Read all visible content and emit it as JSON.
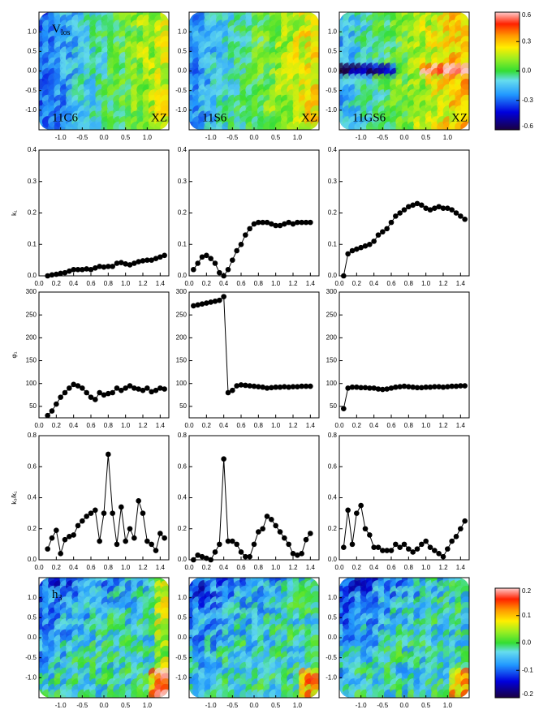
{
  "chart_data": [
    {
      "type": "map",
      "label": "V",
      "label_sub": "los",
      "name": "11C6",
      "view": "XZ",
      "xlim": [
        -1.5,
        1.5
      ],
      "ylim": [
        -1.5,
        1.5
      ],
      "xticks": [
        {
          "value": -1,
          "label": "-1.0"
        },
        -0.5,
        {
          "value": 0,
          "label": "0.0"
        },
        0.5,
        {
          "value": 1,
          "label": "1.0"
        }
      ],
      "yticks": [
        {
          "value": 1,
          "label": "1.0"
        },
        0.5,
        {
          "value": 0,
          "label": "0.0"
        },
        -0.5,
        {
          "value": -1,
          "label": "-1.0"
        }
      ]
    },
    {
      "type": "map",
      "name": "11S6",
      "view": "XZ",
      "xlim": [
        -1.5,
        1.5
      ],
      "ylim": [
        -1.5,
        1.5
      ],
      "xticks": [
        {
          "value": -1,
          "label": "-1.0"
        },
        -0.5,
        {
          "value": 0,
          "label": "0.0"
        },
        0.5,
        {
          "value": 1,
          "label": "1.0"
        }
      ],
      "yticks": [
        {
          "value": 1,
          "label": "1.0"
        },
        0.5,
        {
          "value": 0,
          "label": "0.0"
        },
        -0.5,
        {
          "value": -1,
          "label": "-1.0"
        }
      ]
    },
    {
      "type": "map",
      "name": "11GS6",
      "view": "XZ",
      "xlim": [
        -1.5,
        1.5
      ],
      "ylim": [
        -1.5,
        1.5
      ],
      "xticks": [
        {
          "value": -1,
          "label": "-1.0"
        },
        -0.5,
        {
          "value": 0,
          "label": "0.0"
        },
        0.5,
        {
          "value": 1,
          "label": "1.0"
        }
      ],
      "yticks": [
        {
          "value": 1,
          "label": "1.0"
        },
        0.5,
        {
          "value": 0,
          "label": "0.0"
        },
        -0.5,
        {
          "value": -1,
          "label": "-1.0"
        }
      ]
    },
    {
      "type": "colorbar",
      "ylim": [
        -0.6,
        0.6
      ],
      "yticks": [
        0.6,
        0.3,
        {
          "value": 0,
          "label": "0.0"
        },
        -0.3,
        -0.6
      ]
    },
    {
      "type": "line",
      "ylabel": "k₁",
      "xlim": [
        0,
        1.5
      ],
      "ylim": [
        0,
        0.4
      ],
      "xticks": [
        {
          "value": 0,
          "label": "0.0"
        },
        0.2,
        0.4,
        0.6,
        0.8,
        {
          "value": 1,
          "label": "1.0"
        },
        1.2,
        1.4
      ],
      "yticks": [
        {
          "value": 0,
          "label": "0.0"
        },
        0.1,
        0.2,
        0.3,
        0.4
      ],
      "x": [
        0.1,
        0.15,
        0.2,
        0.25,
        0.3,
        0.35,
        0.4,
        0.45,
        0.5,
        0.55,
        0.6,
        0.65,
        0.7,
        0.75,
        0.8,
        0.85,
        0.9,
        0.95,
        1,
        1.05,
        1.1,
        1.15,
        1.2,
        1.25,
        1.3,
        1.35,
        1.4,
        1.45
      ],
      "values": [
        0,
        0.003,
        0.005,
        0.008,
        0.01,
        0.015,
        0.02,
        0.02,
        0.02,
        0.022,
        0.02,
        0.025,
        0.03,
        0.028,
        0.03,
        0.03,
        0.04,
        0.042,
        0.038,
        0.035,
        0.04,
        0.045,
        0.048,
        0.05,
        0.05,
        0.055,
        0.06,
        0.065
      ]
    },
    {
      "type": "line",
      "xlim": [
        0,
        1.5
      ],
      "ylim": [
        0,
        0.4
      ],
      "xticks": [
        {
          "value": 0,
          "label": "0.0"
        },
        0.2,
        0.4,
        0.6,
        0.8,
        {
          "value": 1,
          "label": "1.0"
        },
        1.2,
        1.4
      ],
      "yticks": [
        {
          "value": 0,
          "label": "0.0"
        },
        0.1,
        0.2,
        0.3,
        0.4
      ],
      "x": [
        0.05,
        0.1,
        0.15,
        0.2,
        0.25,
        0.3,
        0.35,
        0.4,
        0.45,
        0.5,
        0.55,
        0.6,
        0.65,
        0.7,
        0.75,
        0.8,
        0.85,
        0.9,
        0.95,
        1,
        1.05,
        1.1,
        1.15,
        1.2,
        1.25,
        1.3,
        1.35,
        1.4
      ],
      "values": [
        0.02,
        0.04,
        0.06,
        0.065,
        0.055,
        0.04,
        0.01,
        0,
        0.02,
        0.05,
        0.08,
        0.1,
        0.13,
        0.15,
        0.165,
        0.17,
        0.17,
        0.17,
        0.165,
        0.16,
        0.16,
        0.165,
        0.17,
        0.165,
        0.17,
        0.17,
        0.17,
        0.17
      ]
    },
    {
      "type": "line",
      "xlim": [
        0,
        1.5
      ],
      "ylim": [
        0,
        0.4
      ],
      "xticks": [
        {
          "value": 0,
          "label": "0.0"
        },
        0.2,
        0.4,
        0.6,
        0.8,
        {
          "value": 1,
          "label": "1.0"
        },
        1.2,
        1.4
      ],
      "yticks": [
        {
          "value": 0,
          "label": "0.0"
        },
        0.1,
        0.2,
        0.3,
        0.4
      ],
      "x": [
        0.05,
        0.1,
        0.15,
        0.2,
        0.25,
        0.3,
        0.35,
        0.4,
        0.45,
        0.5,
        0.55,
        0.6,
        0.65,
        0.7,
        0.75,
        0.8,
        0.85,
        0.9,
        0.95,
        1,
        1.05,
        1.1,
        1.15,
        1.2,
        1.25,
        1.3,
        1.35,
        1.4,
        1.45
      ],
      "values": [
        0,
        0.07,
        0.08,
        0.085,
        0.09,
        0.095,
        0.1,
        0.11,
        0.13,
        0.14,
        0.15,
        0.17,
        0.19,
        0.2,
        0.21,
        0.22,
        0.225,
        0.23,
        0.225,
        0.215,
        0.21,
        0.215,
        0.22,
        0.215,
        0.215,
        0.21,
        0.2,
        0.19,
        0.18
      ]
    },
    {
      "type": "line",
      "ylabel": "φ₁",
      "xlim": [
        0,
        1.5
      ],
      "ylim": [
        25,
        300
      ],
      "xticks": [
        {
          "value": 0,
          "label": "0.0"
        },
        0.2,
        0.4,
        0.6,
        0.8,
        {
          "value": 1,
          "label": "1.0"
        },
        1.2,
        1.4
      ],
      "yticks": [
        50,
        100,
        150,
        200,
        250,
        300
      ],
      "x": [
        0.1,
        0.15,
        0.2,
        0.25,
        0.3,
        0.35,
        0.4,
        0.45,
        0.5,
        0.55,
        0.6,
        0.65,
        0.7,
        0.75,
        0.8,
        0.85,
        0.9,
        0.95,
        1,
        1.05,
        1.1,
        1.15,
        1.2,
        1.25,
        1.3,
        1.35,
        1.4,
        1.45
      ],
      "values": [
        30,
        40,
        55,
        70,
        80,
        90,
        98,
        95,
        90,
        80,
        70,
        65,
        80,
        75,
        78,
        80,
        90,
        85,
        90,
        95,
        90,
        88,
        85,
        90,
        82,
        85,
        90,
        88
      ]
    },
    {
      "type": "line",
      "xlim": [
        0,
        1.5
      ],
      "ylim": [
        25,
        300
      ],
      "xticks": [
        {
          "value": 0,
          "label": "0.0"
        },
        0.2,
        0.4,
        0.6,
        0.8,
        {
          "value": 1,
          "label": "1.0"
        },
        1.2,
        1.4
      ],
      "yticks": [
        50,
        100,
        150,
        200,
        250,
        300
      ],
      "x": [
        0.05,
        0.1,
        0.15,
        0.2,
        0.25,
        0.3,
        0.35,
        0.4,
        0.45,
        0.5,
        0.55,
        0.6,
        0.65,
        0.7,
        0.75,
        0.8,
        0.85,
        0.9,
        0.95,
        1,
        1.05,
        1.1,
        1.15,
        1.2,
        1.25,
        1.3,
        1.35,
        1.4
      ],
      "values": [
        270,
        272,
        274,
        276,
        278,
        280,
        282,
        290,
        80,
        85,
        95,
        97,
        96,
        95,
        94,
        93,
        92,
        90,
        91,
        92,
        92,
        93,
        92,
        93,
        93,
        94,
        94,
        94
      ]
    },
    {
      "type": "line",
      "xlim": [
        0,
        1.5
      ],
      "ylim": [
        25,
        300
      ],
      "xticks": [
        {
          "value": 0,
          "label": "0.0"
        },
        0.2,
        0.4,
        0.6,
        0.8,
        {
          "value": 1,
          "label": "1.0"
        },
        1.2,
        1.4
      ],
      "yticks": [
        50,
        100,
        150,
        200,
        250,
        300
      ],
      "x": [
        0.05,
        0.1,
        0.15,
        0.2,
        0.25,
        0.3,
        0.35,
        0.4,
        0.45,
        0.5,
        0.55,
        0.6,
        0.65,
        0.7,
        0.75,
        0.8,
        0.85,
        0.9,
        0.95,
        1,
        1.05,
        1.1,
        1.15,
        1.2,
        1.25,
        1.3,
        1.35,
        1.4,
        1.45
      ],
      "values": [
        45,
        90,
        92,
        92,
        91,
        91,
        90,
        90,
        88,
        87,
        88,
        90,
        92,
        93,
        94,
        93,
        92,
        91,
        91,
        92,
        92,
        93,
        93,
        92,
        93,
        94,
        94,
        95,
        95
      ]
    },
    {
      "type": "line",
      "ylabel": "k₃/k₁",
      "xlim": [
        0,
        1.5
      ],
      "ylim": [
        0,
        0.8
      ],
      "xticks": [
        {
          "value": 0,
          "label": "0.0"
        },
        0.2,
        0.4,
        0.6,
        0.8,
        {
          "value": 1,
          "label": "1.0"
        },
        1.2,
        1.4
      ],
      "yticks": [
        {
          "value": 0,
          "label": "0.0"
        },
        0.2,
        0.4,
        0.6,
        0.8
      ],
      "x": [
        0.1,
        0.15,
        0.2,
        0.25,
        0.3,
        0.35,
        0.4,
        0.45,
        0.5,
        0.55,
        0.6,
        0.65,
        0.7,
        0.75,
        0.8,
        0.85,
        0.9,
        0.95,
        1,
        1.05,
        1.1,
        1.15,
        1.2,
        1.25,
        1.3,
        1.35,
        1.4,
        1.45
      ],
      "values": [
        0.07,
        0.14,
        0.19,
        0.04,
        0.13,
        0.15,
        0.16,
        0.22,
        0.25,
        0.28,
        0.3,
        0.32,
        0.12,
        0.3,
        0.68,
        0.3,
        0.1,
        0.34,
        0.12,
        0.2,
        0.14,
        0.38,
        0.3,
        0.12,
        0.1,
        0.06,
        0.17,
        0.14
      ]
    },
    {
      "type": "line",
      "xlim": [
        0,
        1.5
      ],
      "ylim": [
        0,
        0.8
      ],
      "xticks": [
        {
          "value": 0,
          "label": "0.0"
        },
        0.2,
        0.4,
        0.6,
        0.8,
        {
          "value": 1,
          "label": "1.0"
        },
        1.2,
        1.4
      ],
      "yticks": [
        {
          "value": 0,
          "label": "0.0"
        },
        0.2,
        0.4,
        0.6,
        0.8
      ],
      "x": [
        0.05,
        0.1,
        0.15,
        0.2,
        0.25,
        0.3,
        0.35,
        0.4,
        0.45,
        0.5,
        0.55,
        0.6,
        0.65,
        0.7,
        0.75,
        0.8,
        0.85,
        0.9,
        0.95,
        1,
        1.05,
        1.1,
        1.15,
        1.2,
        1.25,
        1.3,
        1.35,
        1.4
      ],
      "values": [
        0,
        0.03,
        0.02,
        0.01,
        0,
        0.05,
        0.1,
        0.65,
        0.12,
        0.12,
        0.1,
        0.05,
        0.02,
        0.02,
        0.1,
        0.18,
        0.2,
        0.28,
        0.26,
        0.22,
        0.18,
        0.14,
        0.1,
        0.04,
        0.03,
        0.04,
        0.13,
        0.17
      ]
    },
    {
      "type": "line",
      "xlim": [
        0,
        1.5
      ],
      "ylim": [
        0,
        0.8
      ],
      "xticks": [
        {
          "value": 0,
          "label": "0.0"
        },
        0.2,
        0.4,
        0.6,
        0.8,
        {
          "value": 1,
          "label": "1.0"
        },
        1.2,
        1.4
      ],
      "yticks": [
        {
          "value": 0,
          "label": "0.0"
        },
        0.2,
        0.4,
        0.6,
        0.8
      ],
      "x": [
        0.05,
        0.1,
        0.15,
        0.2,
        0.25,
        0.3,
        0.35,
        0.4,
        0.45,
        0.5,
        0.55,
        0.6,
        0.65,
        0.7,
        0.75,
        0.8,
        0.85,
        0.9,
        0.95,
        1,
        1.05,
        1.1,
        1.15,
        1.2,
        1.25,
        1.3,
        1.35,
        1.4,
        1.45
      ],
      "values": [
        0.08,
        0.32,
        0.1,
        0.3,
        0.35,
        0.2,
        0.16,
        0.08,
        0.08,
        0.06,
        0.06,
        0.06,
        0.1,
        0.08,
        0.1,
        0.07,
        0.05,
        0.07,
        0.1,
        0.12,
        0.08,
        0.06,
        0.04,
        0.02,
        0.07,
        0.12,
        0.15,
        0.2,
        0.25
      ]
    },
    {
      "type": "map",
      "label": "h",
      "label_sub": "3",
      "xlim": [
        -1.5,
        1.5
      ],
      "ylim": [
        -1.5,
        1.5
      ],
      "xticks": [
        {
          "value": -1,
          "label": "-1.0"
        },
        -0.5,
        {
          "value": 0,
          "label": "0.0"
        },
        0.5,
        {
          "value": 1,
          "label": "1.0"
        }
      ],
      "yticks": [
        {
          "value": 1,
          "label": "1.0"
        },
        0.5,
        {
          "value": 0,
          "label": "0.0"
        },
        -0.5,
        {
          "value": -1,
          "label": "-1.0"
        }
      ]
    },
    {
      "type": "map",
      "xlim": [
        -1.5,
        1.5
      ],
      "ylim": [
        -1.5,
        1.5
      ],
      "xticks": [
        {
          "value": -1,
          "label": "-1.0"
        },
        -0.5,
        {
          "value": 0,
          "label": "0.0"
        },
        0.5,
        {
          "value": 1,
          "label": "1.0"
        }
      ],
      "yticks": [
        {
          "value": 1,
          "label": "1.0"
        },
        0.5,
        {
          "value": 0,
          "label": "0.0"
        },
        -0.5,
        {
          "value": -1,
          "label": "-1.0"
        }
      ]
    },
    {
      "type": "map",
      "xlim": [
        -1.5,
        1.5
      ],
      "ylim": [
        -1.5,
        1.5
      ],
      "xticks": [
        {
          "value": -1,
          "label": "-1.0"
        },
        -0.5,
        {
          "value": 0,
          "label": "0.0"
        },
        0.5,
        {
          "value": 1,
          "label": "1.0"
        }
      ],
      "yticks": [
        {
          "value": 1,
          "label": "1.0"
        },
        0.5,
        {
          "value": 0,
          "label": "0.0"
        },
        -0.5,
        {
          "value": -1,
          "label": "-1.0"
        }
      ]
    },
    {
      "type": "colorbar",
      "ylim": [
        -0.2,
        0.2
      ],
      "yticks": [
        0.2,
        0.1,
        {
          "value": 0,
          "label": "0.0"
        },
        -0.1,
        -0.2
      ]
    }
  ]
}
